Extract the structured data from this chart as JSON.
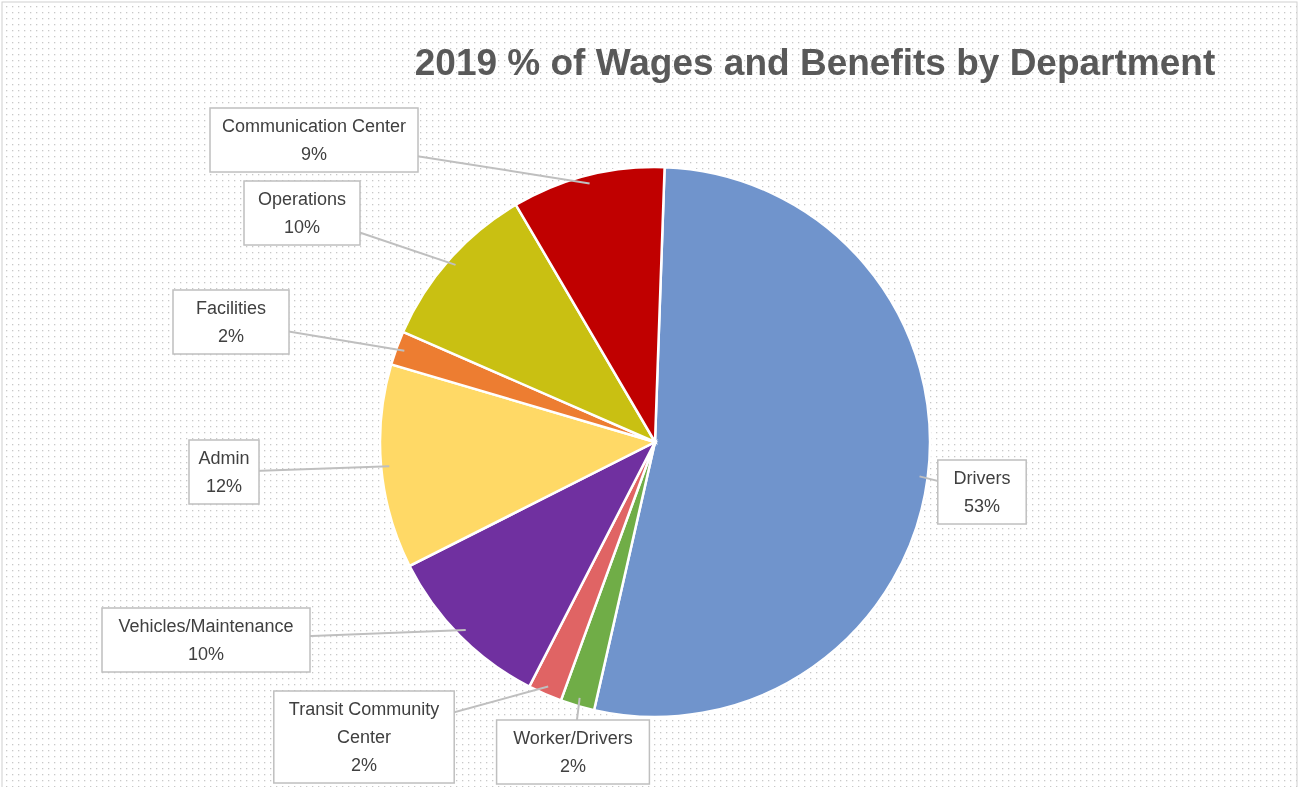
{
  "chart_data": {
    "type": "pie",
    "title": "2019 % of Wages and Benefits by Department",
    "categories": [
      "Drivers",
      "Worker/Drivers",
      "Transit Community Center",
      "Vehicles/Maintenance",
      "Admin",
      "Facilities",
      "Operations",
      "Communication Center"
    ],
    "values": [
      53,
      2,
      2,
      10,
      12,
      2,
      10,
      9
    ],
    "value_labels": [
      "53%",
      "2%",
      "2%",
      "10%",
      "12%",
      "2%",
      "10%",
      "9%"
    ],
    "colors": [
      "#7094cc",
      "#70ad47",
      "#e06464",
      "#7030a0",
      "#ffd966",
      "#ed7d31",
      "#c9c012",
      "#c00000"
    ]
  }
}
